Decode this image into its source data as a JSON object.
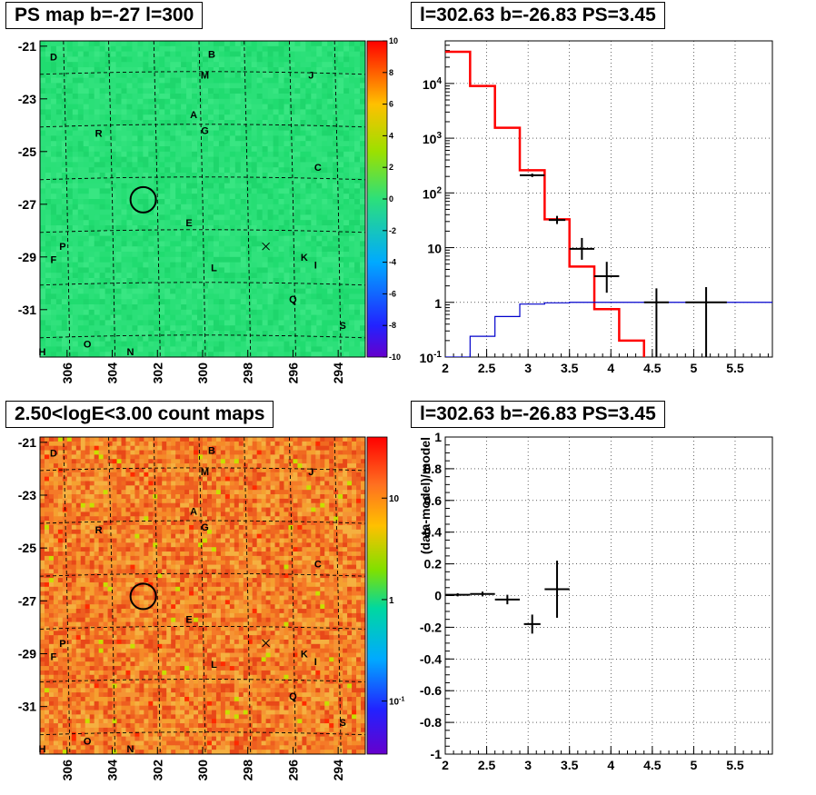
{
  "colors": {
    "map_green": "#2ce07a",
    "map_orange": "#f57a28",
    "model_red": "#ff0000",
    "background_blue": "#0000cc",
    "data_black": "#000000"
  },
  "panels": {
    "tl": {
      "title": "PS map b=-27 l=300"
    },
    "tr": {
      "title": "l=302.63 b=-26.83 PS=3.45"
    },
    "bl": {
      "title": "2.50<logE<3.00 count maps"
    },
    "br": {
      "title": "l=302.63 b=-26.83 PS=3.45"
    }
  },
  "sources": [
    {
      "label": "D",
      "l": 306.6,
      "b": -21.4
    },
    {
      "label": "B",
      "l": 299.6,
      "b": -21.3
    },
    {
      "label": "M",
      "l": 299.9,
      "b": -22.1
    },
    {
      "label": "J",
      "l": 295.2,
      "b": -22.1
    },
    {
      "label": "A",
      "l": 300.4,
      "b": -23.6
    },
    {
      "label": "R",
      "l": 304.6,
      "b": -24.3
    },
    {
      "label": "G",
      "l": 299.9,
      "b": -24.2
    },
    {
      "label": "C",
      "l": 294.9,
      "b": -25.6
    },
    {
      "label": "E",
      "l": 300.6,
      "b": -27.7
    },
    {
      "label": "P",
      "l": 306.2,
      "b": -28.6
    },
    {
      "label": "F",
      "l": 306.6,
      "b": -29.1
    },
    {
      "label": "L",
      "l": 299.5,
      "b": -29.4
    },
    {
      "label": "K",
      "l": 295.5,
      "b": -29.0
    },
    {
      "label": "I",
      "l": 295.0,
      "b": -29.3
    },
    {
      "label": "Q",
      "l": 296.0,
      "b": -30.6
    },
    {
      "label": "S",
      "l": 293.8,
      "b": -31.6
    },
    {
      "label": "O",
      "l": 305.1,
      "b": -32.3
    },
    {
      "label": "N",
      "l": 303.2,
      "b": -32.6
    },
    {
      "label": "H",
      "l": 307.1,
      "b": -32.6
    }
  ],
  "chart_data": [
    {
      "id": "ps_map",
      "type": "heatmap",
      "title": "PS map b=-27 l=300",
      "x_ticks": [
        306,
        304,
        302,
        300,
        298,
        296,
        294
      ],
      "y_ticks": [
        -21,
        -23,
        -25,
        -27,
        -29,
        -31
      ],
      "xlim": [
        307.2,
        292.8
      ],
      "ylim": [
        -32.8,
        -20.8
      ],
      "z_range": [
        -10,
        10
      ],
      "z_ticks": [
        10,
        8,
        6,
        4,
        2,
        0,
        -2,
        -4,
        -6,
        -8,
        -10
      ],
      "marked_position": {
        "l": 302.63,
        "b": -26.83
      },
      "cross": {
        "l": 297.2,
        "b": -28.6
      }
    },
    {
      "id": "spectrum",
      "type": "line",
      "title": "l=302.63 b=-26.83 PS=3.45",
      "xlim": [
        2,
        5.95
      ],
      "ylim": [
        0.1,
        60000
      ],
      "yscale": "log",
      "x_ticks": [
        "2",
        "2.5",
        "3",
        "3.5",
        "4",
        "4.5",
        "5",
        "5.5"
      ],
      "y_ticks": [
        {
          "v": 0.1,
          "base": "10",
          "exp": "-1"
        },
        {
          "v": 1,
          "label": "1"
        },
        {
          "v": 10,
          "label": "10"
        },
        {
          "v": 100,
          "base": "10",
          "exp": "2"
        },
        {
          "v": 1000,
          "base": "10",
          "exp": "3"
        },
        {
          "v": 10000,
          "base": "10",
          "exp": "4"
        }
      ],
      "series": [
        {
          "edges": [
            2.0,
            2.3,
            2.6,
            2.9,
            3.2,
            3.5,
            3.8,
            4.1,
            4.4
          ],
          "values": [
            38000,
            9000,
            1550,
            260,
            33,
            4.5,
            0.75,
            0.2
          ]
        },
        {
          "edges": [
            2.0,
            2.3,
            2.6,
            2.9,
            3.2,
            3.5,
            3.8,
            4.1,
            4.4,
            4.7,
            5.0,
            5.3,
            5.6,
            5.95
          ],
          "values": [
            0.1,
            0.24,
            0.55,
            0.93,
            0.98,
            1.0,
            1.0,
            1.0,
            1.0,
            1.0,
            1.0,
            1.0,
            1.0
          ]
        },
        {
          "points": [
            {
              "x": 3.05,
              "y": 210,
              "xerr": 0.15,
              "ylo": 195,
              "yhi": 225
            },
            {
              "x": 3.35,
              "y": 32,
              "xerr": 0.1,
              "ylo": 27,
              "yhi": 38
            },
            {
              "x": 3.65,
              "y": 9.5,
              "xerr": 0.15,
              "ylo": 6,
              "yhi": 15
            },
            {
              "x": 3.95,
              "y": 3.0,
              "xerr": 0.15,
              "ylo": 1.5,
              "yhi": 5.5
            },
            {
              "x": 4.55,
              "y": 1.0,
              "xerr": 0.15,
              "ylo": 0.1,
              "yhi": 1.8
            },
            {
              "x": 5.15,
              "y": 1.0,
              "xerr": 0.25,
              "ylo": 0.1,
              "yhi": 1.9
            }
          ]
        }
      ]
    },
    {
      "id": "count_map",
      "type": "heatmap",
      "title": "2.50<logE<3.00 count maps",
      "x_ticks": [
        306,
        304,
        302,
        300,
        298,
        296,
        294
      ],
      "y_ticks": [
        -21,
        -23,
        -25,
        -27,
        -29,
        -31
      ],
      "xlim": [
        307.2,
        292.8
      ],
      "ylim": [
        -32.8,
        -20.8
      ],
      "z_scale": "log",
      "z_range": [
        0.03,
        40
      ],
      "z_ticks": [
        {
          "v": 10,
          "label": "10"
        },
        {
          "v": 1,
          "label": "1"
        },
        {
          "v": 0.1,
          "base": "10",
          "exp": "-1"
        }
      ],
      "marked_position": {
        "l": 302.63,
        "b": -26.83
      },
      "cross": {
        "l": 297.2,
        "b": -28.6
      }
    },
    {
      "id": "residuals",
      "type": "scatter",
      "title": "l=302.63 b=-26.83 PS=3.45",
      "ylabel": "(data-model)/model",
      "xlim": [
        2,
        5.95
      ],
      "ylim": [
        -1,
        1
      ],
      "x_ticks": [
        "2",
        "2.5",
        "3",
        "3.5",
        "4",
        "4.5",
        "5",
        "5.5"
      ],
      "y_ticks": [
        "-1",
        "-0.8",
        "-0.6",
        "-0.4",
        "-0.2",
        "0",
        "0.2",
        "0.4",
        "0.6",
        "0.8",
        "1"
      ],
      "points": [
        {
          "x": 2.15,
          "y": 0.005,
          "xerr": 0.15,
          "yerr": 0.01
        },
        {
          "x": 2.45,
          "y": 0.01,
          "xerr": 0.15,
          "yerr": 0.015
        },
        {
          "x": 2.75,
          "y": -0.025,
          "xerr": 0.15,
          "yerr": 0.03
        },
        {
          "x": 3.05,
          "y": -0.18,
          "xerr": 0.1,
          "yerr": 0.06
        },
        {
          "x": 3.35,
          "y": 0.04,
          "xerr": 0.15,
          "yerr": 0.18
        }
      ]
    }
  ]
}
